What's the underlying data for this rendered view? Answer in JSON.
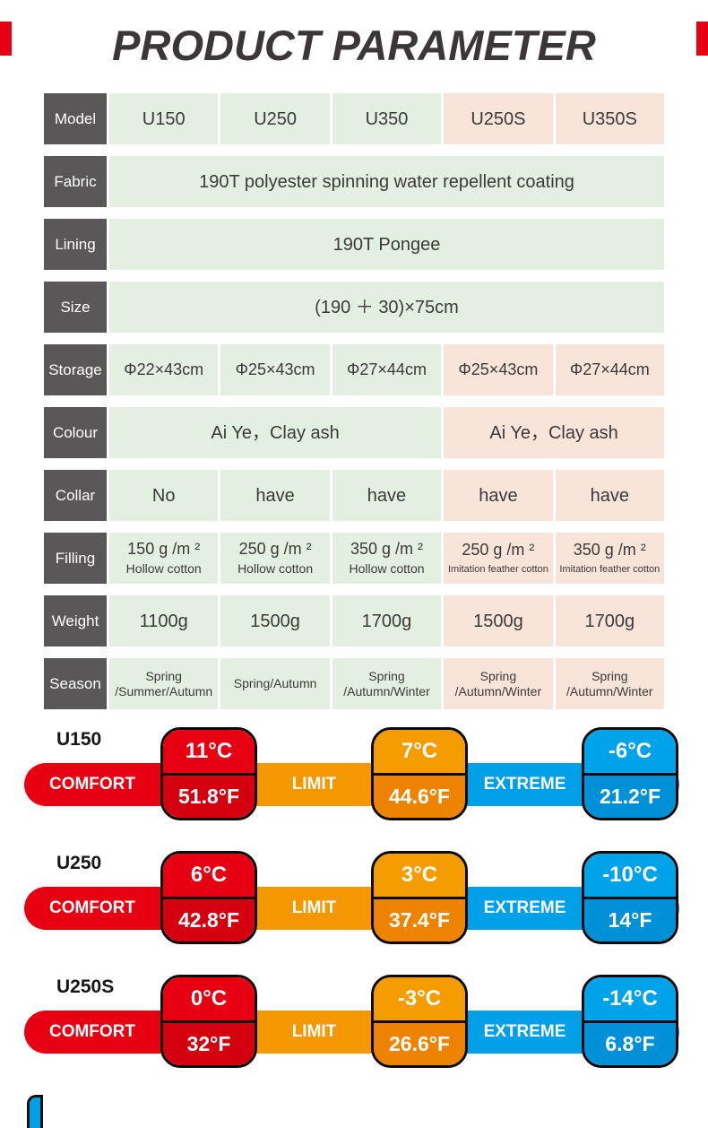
{
  "title": "PRODUCT PARAMETER",
  "colors": {
    "label_bg": "#595757",
    "green_cell": "#e3efe1",
    "peach_cell": "#f8e4d8",
    "comfort_red": "#e60012",
    "limit_orange": "#f39800",
    "extreme_blue": "#00a0e9"
  },
  "table": {
    "rows": [
      {
        "label": "Model",
        "cells": [
          {
            "text": "U150"
          },
          {
            "text": "U250"
          },
          {
            "text": "U350"
          },
          {
            "text": "U250S"
          },
          {
            "text": "U350S"
          }
        ]
      },
      {
        "label": "Fabric",
        "cells": [
          {
            "text": "190T polyester spinning water repellent coating"
          }
        ]
      },
      {
        "label": "Lining",
        "cells": [
          {
            "text": "190T Pongee"
          }
        ]
      },
      {
        "label": "Size",
        "cells": [
          {
            "text": "(190 ＋ 30)×75cm"
          }
        ]
      },
      {
        "label": "Storage",
        "cells": [
          {
            "text": "Φ22×43cm"
          },
          {
            "text": "Φ25×43cm"
          },
          {
            "text": "Φ27×44cm"
          },
          {
            "text": "Φ25×43cm"
          },
          {
            "text": "Φ27×44cm"
          }
        ]
      },
      {
        "label": "Colour",
        "cells": [
          {
            "text": "Ai Ye，Clay ash"
          },
          {
            "text": "Ai Ye，Clay ash"
          }
        ]
      },
      {
        "label": "Collar",
        "cells": [
          {
            "text": "No"
          },
          {
            "text": "have"
          },
          {
            "text": "have"
          },
          {
            "text": "have"
          },
          {
            "text": "have"
          }
        ]
      },
      {
        "label": "Filling",
        "cells": [
          {
            "text": "150 g /m ²",
            "sub": "Hollow cotton"
          },
          {
            "text": "250 g /m ²",
            "sub": "Hollow cotton"
          },
          {
            "text": "350 g /m ²",
            "sub": "Hollow cotton"
          },
          {
            "text": "250 g /m ²",
            "sub": "Imitation feather cotton"
          },
          {
            "text": "350 g /m ²",
            "sub": "Imitation feather cotton"
          }
        ]
      },
      {
        "label": "Weight",
        "cells": [
          {
            "text": "1100g"
          },
          {
            "text": "1500g"
          },
          {
            "text": "1700g"
          },
          {
            "text": "1500g"
          },
          {
            "text": "1700g"
          }
        ]
      },
      {
        "label": "Season",
        "cells": [
          {
            "text": "Spring",
            "sub": "/Summer/Autumn"
          },
          {
            "text": "Spring/Autumn"
          },
          {
            "text": "Spring",
            "sub": "/Autumn/Winter"
          },
          {
            "text": "Spring",
            "sub": "/Autumn/Winter"
          },
          {
            "text": "Spring",
            "sub": "/Autumn/Winter"
          }
        ]
      }
    ]
  },
  "temps": {
    "comfort_label": "COMFORT",
    "limit_label": "LIMIT",
    "extreme_label": "EXTREME",
    "sections": [
      {
        "model": "U150",
        "comfort_c": "11°C",
        "comfort_f": "51.8°F",
        "limit_c": "7°C",
        "limit_f": "44.6°F",
        "extreme_c": "-6°C",
        "extreme_f": "21.2°F"
      },
      {
        "model": "U250",
        "comfort_c": "6°C",
        "comfort_f": "42.8°F",
        "limit_c": "3°C",
        "limit_f": "37.4°F",
        "extreme_c": "-10°C",
        "extreme_f": "14°F"
      },
      {
        "model": "U250S",
        "comfort_c": "0°C",
        "comfort_f": "32°F",
        "limit_c": "-3°C",
        "limit_f": "26.6°F",
        "extreme_c": "-14°C",
        "extreme_f": "6.8°F"
      }
    ]
  }
}
